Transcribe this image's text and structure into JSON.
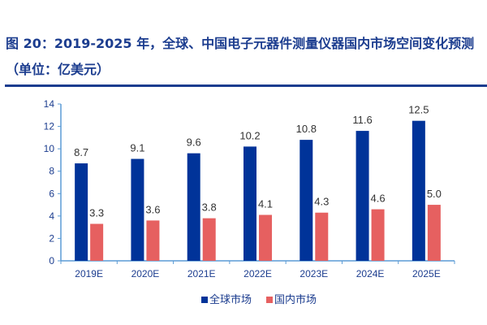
{
  "title": "图 20：2019-2025 年，全球、中国电子元器件测量仪器国内市场空间变化预测（单位：亿美元）",
  "chart_data": {
    "type": "bar",
    "title": "图 20：2019-2025 年，全球、中国电子元器件测量仪器国内市场空间变化预测（单位：亿美元）",
    "categories": [
      "2019E",
      "2020E",
      "2021E",
      "2022E",
      "2023E",
      "2024E",
      "2025E"
    ],
    "series": [
      {
        "name": "全球市场",
        "values": [
          8.7,
          9.1,
          9.6,
          10.2,
          10.8,
          11.6,
          12.5
        ],
        "color": "#003399"
      },
      {
        "name": "国内市场",
        "values": [
          3.3,
          3.6,
          3.8,
          4.1,
          4.3,
          4.6,
          5.0
        ],
        "color": "#e66060"
      }
    ],
    "ylim": [
      0,
      14
    ],
    "yticks": [
      0,
      2,
      4,
      6,
      8,
      10,
      12,
      14
    ],
    "grid": false,
    "legend": "bottom",
    "xlabel": "",
    "ylabel": ""
  }
}
